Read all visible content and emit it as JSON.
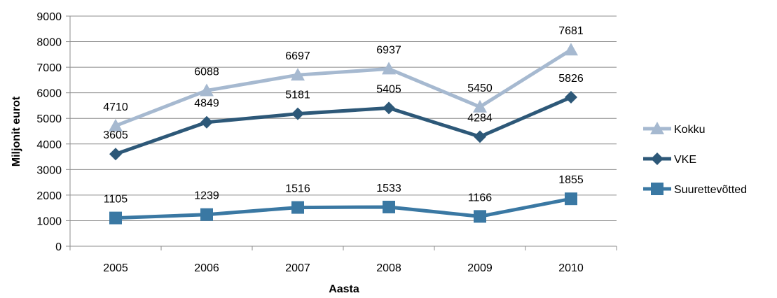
{
  "chart_data": {
    "type": "line",
    "title": "",
    "xlabel": "Aasta",
    "ylabel": "Miljonit eurot",
    "categories": [
      "2005",
      "2006",
      "2007",
      "2008",
      "2009",
      "2010"
    ],
    "ylim": [
      0,
      9000
    ],
    "yticks": [
      "0",
      "1000",
      "2000",
      "3000",
      "4000",
      "5000",
      "6000",
      "7000",
      "8000",
      "9000"
    ],
    "grid": true,
    "legend_position": "right",
    "series": [
      {
        "name": "Kokku",
        "values": [
          4710,
          6088,
          6697,
          6937,
          5450,
          7681
        ],
        "color": "#a6b9d0",
        "marker": "triangle"
      },
      {
        "name": "VKE",
        "values": [
          3605,
          4849,
          5181,
          5405,
          4284,
          5826
        ],
        "color": "#2d5878",
        "marker": "diamond"
      },
      {
        "name": "Suurettevõtted",
        "values": [
          1105,
          1239,
          1516,
          1533,
          1166,
          1855
        ],
        "color": "#3a78a3",
        "marker": "square"
      }
    ]
  }
}
